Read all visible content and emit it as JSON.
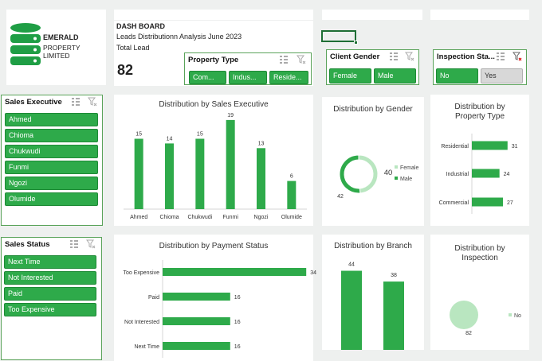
{
  "brand": {
    "line1": "EMERALD",
    "line2": "PROPERTY LIMITED"
  },
  "header": {
    "title": "DASH BOARD",
    "subtitle": "Leads Distributionn Analysis June 2023",
    "kpi_label": "Total Lead",
    "kpi_value": "82"
  },
  "slicers": {
    "property_type": {
      "title": "Property Type",
      "items": [
        "Com...",
        "Indus...",
        "Reside..."
      ]
    },
    "client_gender": {
      "title": "Client Gender",
      "items": [
        "Female",
        "Male"
      ]
    },
    "inspection": {
      "title": "Inspection Sta...",
      "items": [
        "No",
        "Yes"
      ]
    },
    "sales_executive": {
      "title": "Sales Executive",
      "items": [
        "Ahmed",
        "Chioma",
        "Chukwudi",
        "Funmi",
        "Ngozi",
        "Olumide"
      ]
    },
    "sales_status": {
      "title": "Sales Status",
      "items": [
        "Next Time",
        "Not Interested",
        "Paid",
        "Too Expensive"
      ]
    }
  },
  "colors": {
    "accent": "#2eaa4a",
    "accent_light": "#b9e6c0",
    "slicer_border": "#5aa35a"
  },
  "chart_data": [
    {
      "id": "sales_exec",
      "type": "bar",
      "title": "Distribution by Sales Executive",
      "categories": [
        "Ahmed",
        "Chioma",
        "Chukwudi",
        "Funmi",
        "Ngozi",
        "Olumide"
      ],
      "values": [
        15,
        14,
        15,
        19,
        13,
        6
      ],
      "ylim": [
        0,
        20
      ]
    },
    {
      "id": "gender",
      "type": "pie",
      "title": "Distribution by Gender",
      "labels": [
        "Female",
        "Male"
      ],
      "values": [
        40,
        42
      ],
      "legend": "right"
    },
    {
      "id": "property_type",
      "type": "bar",
      "orientation": "horizontal",
      "title": "Distribution by Property Type",
      "categories": [
        "Residential",
        "Industrial",
        "Commercial"
      ],
      "values": [
        31,
        24,
        27
      ],
      "xlim": [
        0,
        36
      ]
    },
    {
      "id": "payment_status",
      "type": "bar",
      "orientation": "horizontal",
      "title": "Distribution by Payment Status",
      "categories": [
        "Too Expensive",
        "Paid",
        "Not Interested",
        "Next Time"
      ],
      "values": [
        34,
        16,
        16,
        16
      ],
      "xlim": [
        0,
        40
      ]
    },
    {
      "id": "branch",
      "type": "bar",
      "title": "Distribution by Branch",
      "categories": [
        "",
        ""
      ],
      "values": [
        44,
        38
      ],
      "ylim": [
        0,
        46
      ]
    },
    {
      "id": "inspection",
      "type": "pie",
      "title": "Distribution by Inspection",
      "labels": [
        "No"
      ],
      "values": [
        82
      ],
      "legend": "right"
    }
  ]
}
